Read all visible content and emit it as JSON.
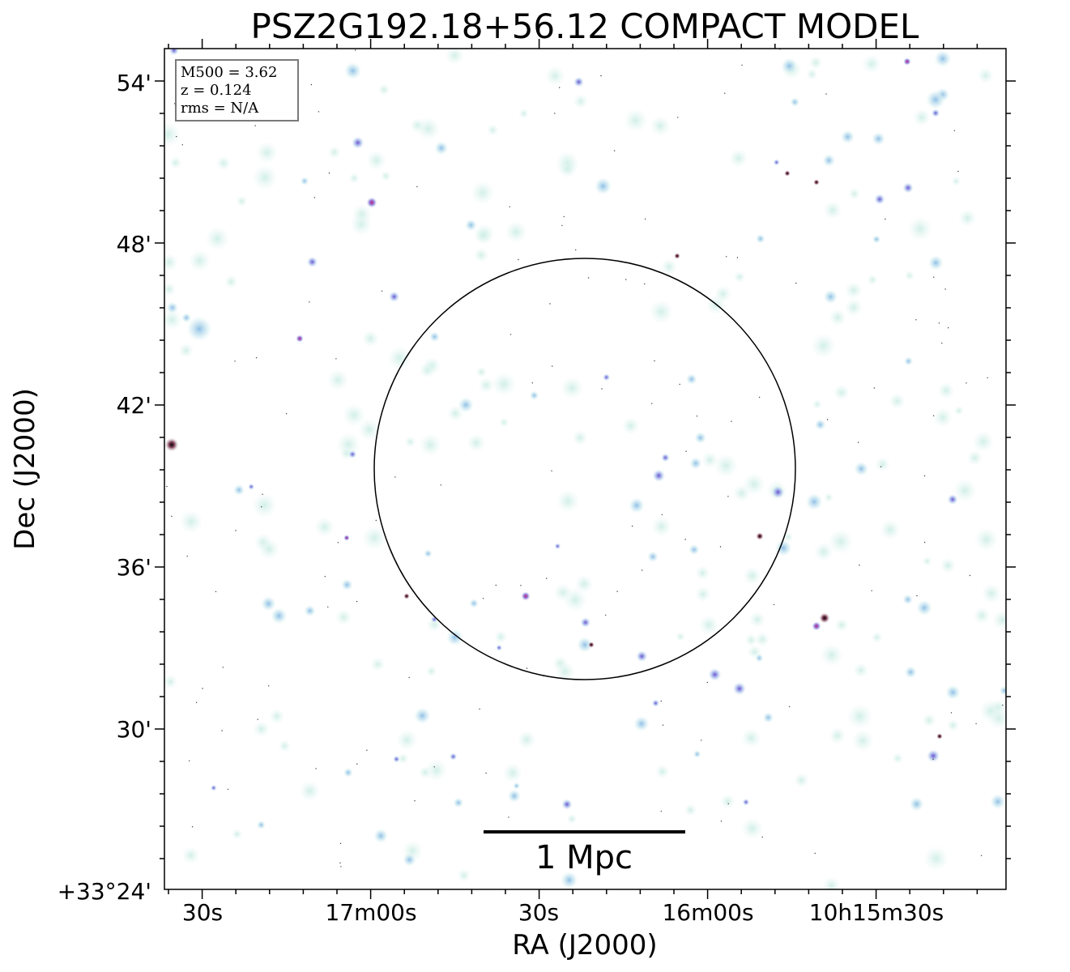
{
  "chart_data": {
    "type": "sky_image",
    "title": "PSZ2G192.18+56.12 COMPACT MODEL",
    "xlabel": "RA (J2000)",
    "ylabel": "Dec (J2000)",
    "x_ticks": [
      "30s",
      "17m00s",
      "30s",
      "16m00s",
      "10h15m30s"
    ],
    "y_ticks": [
      "+33°24'",
      "30'",
      "36'",
      "42'",
      "48'",
      "54'"
    ],
    "info_box": [
      "M500 = 3.62",
      "z = 0.124",
      "rms = N/A"
    ],
    "scale_bar_label": "1 Mpc",
    "circle": {
      "shape": "circle",
      "color": "#000000"
    },
    "colors": {
      "background": "#ffffff",
      "faint_source": "#d6f0ea",
      "medium_source": "#a9cfe8",
      "bright_source": "#7d6ad6",
      "peak_source": "#c2187a",
      "axis": "#000000"
    }
  }
}
